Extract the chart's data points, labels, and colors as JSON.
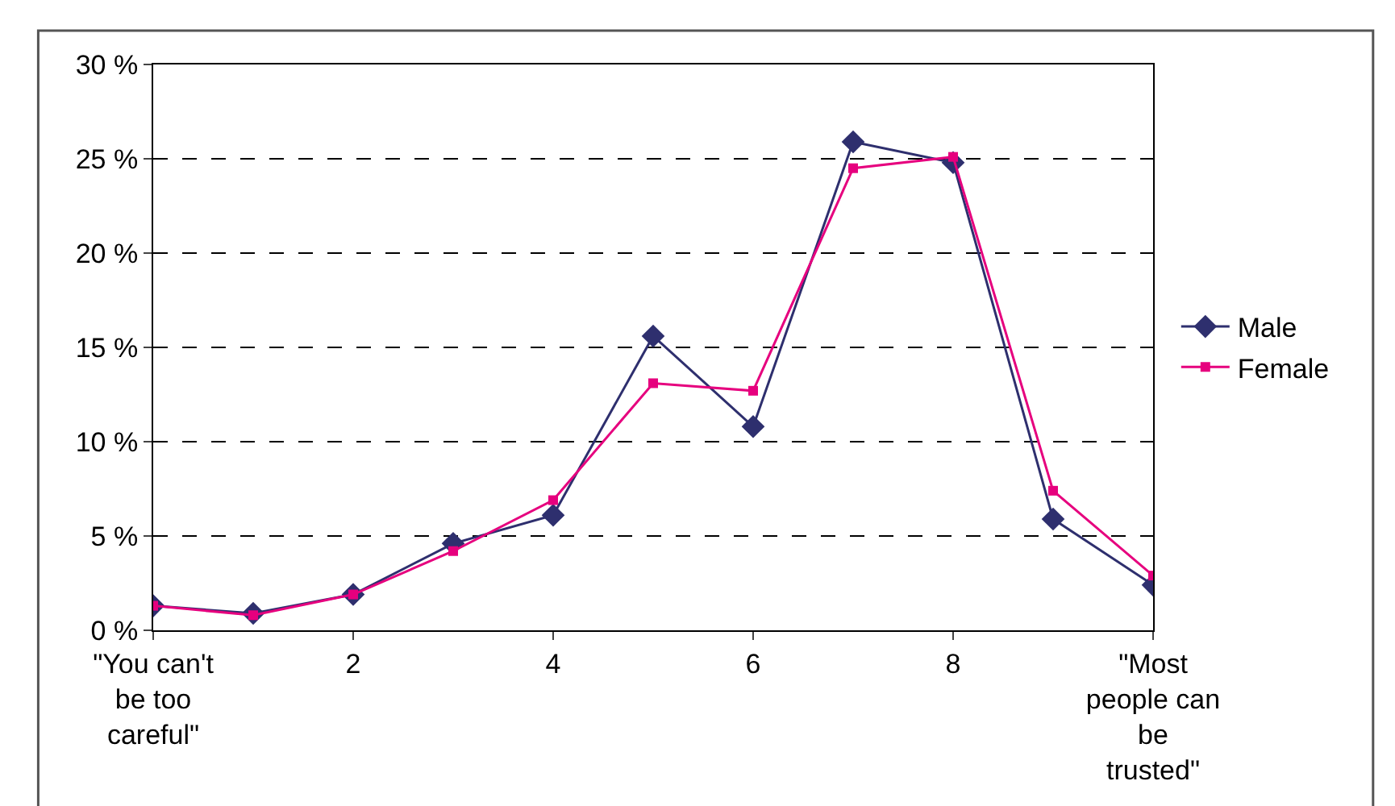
{
  "chart_data": {
    "type": "line",
    "categories": [
      "\"You can't be too careful\"",
      null,
      "2",
      null,
      "4",
      null,
      "6",
      null,
      "8",
      null,
      "\"Most people can be trusted\""
    ],
    "series": [
      {
        "name": "Male",
        "color": "#2e2f6e",
        "marker": "diamond",
        "values": [
          1.3,
          0.9,
          1.9,
          4.6,
          6.1,
          15.6,
          10.8,
          25.9,
          24.8,
          5.9,
          2.4
        ]
      },
      {
        "name": "Female",
        "color": "#e6007e",
        "marker": "square",
        "values": [
          1.3,
          0.8,
          1.9,
          4.2,
          6.9,
          13.1,
          12.7,
          24.5,
          25.1,
          7.4,
          2.9
        ]
      }
    ],
    "ylim": [
      0,
      30
    ],
    "yticks": [
      {
        "value": 0,
        "label": "0 %"
      },
      {
        "value": 5,
        "label": "5 %"
      },
      {
        "value": 10,
        "label": "10 %"
      },
      {
        "value": 15,
        "label": "15 %"
      },
      {
        "value": 20,
        "label": "20 %"
      },
      {
        "value": 25,
        "label": "25 %"
      },
      {
        "value": 30,
        "label": "30 %"
      }
    ],
    "grid": "y",
    "legend": "right",
    "line_style": "solid"
  }
}
